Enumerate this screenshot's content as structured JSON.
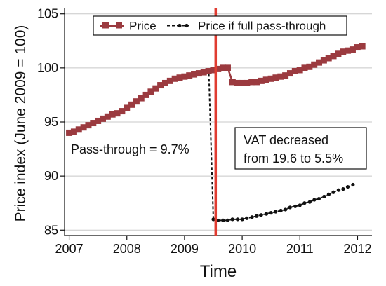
{
  "chart_data": {
    "type": "line",
    "xlabel": "Time",
    "ylabel": "Price index (June 2009 = 100)",
    "xlim": [
      2006.92,
      2012.25
    ],
    "ylim": [
      84.5,
      105.5
    ],
    "x_ticks": [
      2007,
      2008,
      2009,
      2010,
      2011,
      2012
    ],
    "x_tick_labels": [
      "2007",
      "2008",
      "2009",
      "2010",
      "2011",
      "2012"
    ],
    "y_ticks": [
      85,
      90,
      95,
      100,
      105
    ],
    "y_tick_labels": [
      "85",
      "90",
      "95",
      "100",
      "105"
    ],
    "grid": "horizontal",
    "legend_position": "top",
    "event_line": {
      "x": 2009.54,
      "color": "#e03c31"
    },
    "series": [
      {
        "name": "Price",
        "style": "square markers",
        "color": "#9b3a3f",
        "x_start": 2007.0,
        "step": 0.0833,
        "values": [
          94.0,
          94.1,
          94.3,
          94.5,
          94.7,
          94.9,
          95.1,
          95.3,
          95.5,
          95.7,
          95.8,
          96.0,
          96.3,
          96.6,
          96.9,
          97.2,
          97.5,
          97.8,
          98.1,
          98.4,
          98.6,
          98.8,
          99.0,
          99.1,
          99.2,
          99.3,
          99.4,
          99.5,
          99.6,
          99.7,
          99.8,
          99.9,
          100.0,
          100.0,
          98.7,
          98.6,
          98.6,
          98.6,
          98.7,
          98.7,
          98.8,
          98.9,
          99.0,
          99.1,
          99.2,
          99.3,
          99.5,
          99.7,
          99.8,
          100.0,
          100.1,
          100.3,
          100.5,
          100.7,
          100.9,
          101.1,
          101.3,
          101.5,
          101.6,
          101.7,
          101.9,
          102.0
        ]
      },
      {
        "name": "Price if full pass-through",
        "style": "dashed with dots",
        "color": "#111111",
        "points": [
          [
            2009.42,
            99.9
          ],
          [
            2009.5,
            86.0
          ],
          [
            2009.58,
            85.9
          ],
          [
            2009.67,
            85.9
          ],
          [
            2009.75,
            85.9
          ],
          [
            2009.83,
            86.0
          ],
          [
            2009.92,
            86.0
          ],
          [
            2010.0,
            86.0
          ],
          [
            2010.08,
            86.1
          ],
          [
            2010.17,
            86.2
          ],
          [
            2010.25,
            86.3
          ],
          [
            2010.33,
            86.4
          ],
          [
            2010.42,
            86.5
          ],
          [
            2010.5,
            86.6
          ],
          [
            2010.58,
            86.7
          ],
          [
            2010.67,
            86.8
          ],
          [
            2010.75,
            86.9
          ],
          [
            2010.83,
            87.1
          ],
          [
            2010.92,
            87.2
          ],
          [
            2011.0,
            87.3
          ],
          [
            2011.08,
            87.5
          ],
          [
            2011.17,
            87.6
          ],
          [
            2011.25,
            87.8
          ],
          [
            2011.33,
            87.9
          ],
          [
            2011.42,
            88.1
          ],
          [
            2011.5,
            88.3
          ],
          [
            2011.58,
            88.5
          ],
          [
            2011.67,
            88.7
          ],
          [
            2011.75,
            88.8
          ],
          [
            2011.83,
            89.0
          ],
          [
            2011.92,
            89.2
          ]
        ]
      }
    ],
    "annotations": {
      "pass_through": "Pass-through = 9.7%",
      "vat_line1": "VAT decreased",
      "vat_line2": "from 19.6 to 5.5%"
    }
  }
}
